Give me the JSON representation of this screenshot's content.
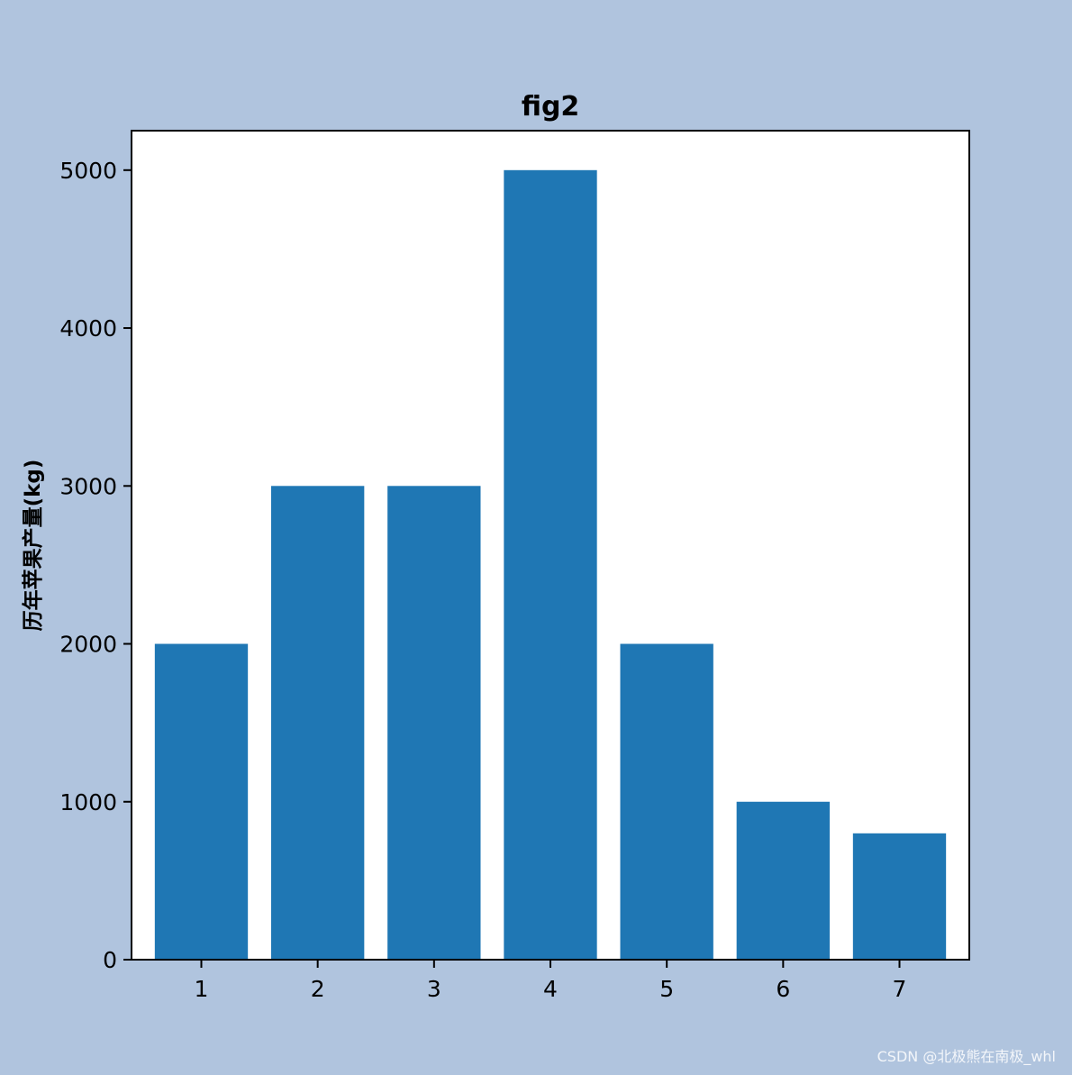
{
  "chart_data": {
    "type": "bar",
    "title": "fig2",
    "xlabel": "",
    "ylabel": "历年苹果产量(kg)",
    "categories": [
      "1",
      "2",
      "3",
      "4",
      "5",
      "6",
      "7"
    ],
    "values": [
      2000,
      3000,
      3000,
      5000,
      2000,
      1000,
      800
    ],
    "yticks": [
      0,
      1000,
      2000,
      3000,
      4000,
      5000
    ],
    "ylim": [
      0,
      5250
    ],
    "grid": false,
    "legend": "none"
  },
  "colors": {
    "figure_background": "#b0c4de",
    "plot_background": "#ffffff",
    "bar": "#1f77b4",
    "axis": "#000000"
  },
  "watermark": "CSDN @北极熊在南极_whl"
}
